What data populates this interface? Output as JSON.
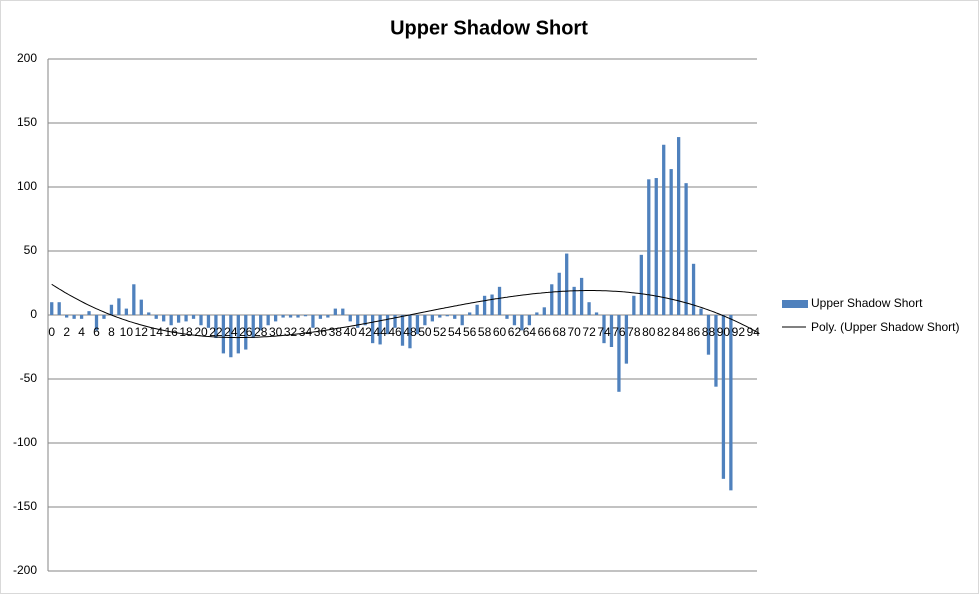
{
  "chart_data": {
    "type": "bar",
    "title": "Upper Shadow Short",
    "categories": [
      "0",
      null,
      "2",
      null,
      "4",
      null,
      "6",
      null,
      "8",
      null,
      "10",
      null,
      "12",
      null,
      "14",
      null,
      "16",
      null,
      "18",
      null,
      "20",
      null,
      "22",
      null,
      "24",
      null,
      "26",
      null,
      "28",
      null,
      "30",
      null,
      "32",
      null,
      "34",
      null,
      "36",
      null,
      "38",
      null,
      "40",
      null,
      "42",
      null,
      "44",
      null,
      "46",
      null,
      "48",
      null,
      "50",
      null,
      "52",
      null,
      "54",
      null,
      "56",
      null,
      "58",
      null,
      "60",
      null,
      "62",
      null,
      "64",
      null,
      "66",
      null,
      "68",
      null,
      "70",
      null,
      "72",
      null,
      "74",
      null,
      "76",
      null,
      "78",
      null,
      "80",
      null,
      "82",
      null,
      "84",
      null,
      "86",
      null,
      "88",
      null,
      "90",
      null,
      "92",
      null,
      "94"
    ],
    "series": [
      {
        "name": "Upper Shadow Short",
        "color": "#4f81bd",
        "values": [
          10,
          10,
          -2,
          -3,
          -3,
          3,
          -12,
          -3,
          8,
          13,
          5,
          24,
          12,
          2,
          -3,
          -5,
          -8,
          -6,
          -5,
          -3,
          -8,
          -10,
          -18,
          -30,
          -33,
          -30,
          -27,
          -18,
          -12,
          -8,
          -5,
          -2,
          -2,
          -2,
          -1,
          -10,
          -3,
          -2,
          5,
          5,
          -5,
          -10,
          -8,
          -22,
          -23,
          -15,
          -10,
          -24,
          -26,
          -15,
          -8,
          -5,
          -2,
          -1,
          -3,
          -8,
          2,
          8,
          15,
          16,
          22,
          -3,
          -8,
          -12,
          -8,
          2,
          6,
          24,
          33,
          48,
          22,
          29,
          10,
          2,
          -22,
          -25,
          -60,
          -38,
          15,
          47,
          106,
          107,
          133,
          114,
          139,
          103,
          40,
          5,
          -31,
          -56,
          -128,
          -137,
          null,
          null,
          null
        ]
      }
    ],
    "trendline": {
      "name": "Poly. (Upper Shadow Short)",
      "color": "#000000"
    },
    "ylim": [
      -200,
      200
    ],
    "yticks": [
      -200,
      -150,
      -100,
      -50,
      0,
      50,
      100,
      150,
      200
    ],
    "grid": true,
    "legend": "right"
  }
}
